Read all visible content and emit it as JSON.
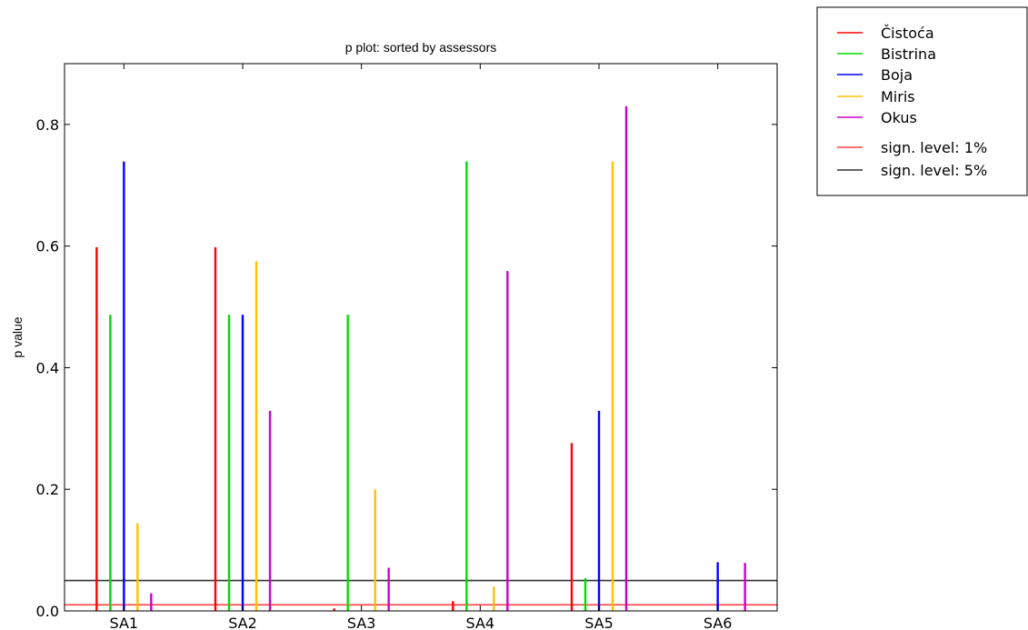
{
  "chart_data": {
    "type": "bar",
    "title": "p plot: sorted by assessors",
    "xlabel": "",
    "ylabel": "p value",
    "categories": [
      "SA1",
      "SA2",
      "SA3",
      "SA4",
      "SA5",
      "SA6"
    ],
    "ylim": [
      0,
      0.9
    ],
    "yticks": [
      0.0,
      0.2,
      0.4,
      0.6,
      0.8
    ],
    "ytick_labels": [
      "0.0",
      "0.2",
      "0.4",
      "0.6",
      "0.8"
    ],
    "grid": false,
    "legend_position": "outside top-right",
    "series": [
      {
        "name": "Čistoća",
        "color": "#ff0000",
        "values": [
          0.598,
          0.598,
          0.004,
          0.016,
          0.276,
          0.0
        ]
      },
      {
        "name": "Bistrina",
        "color": "#00dd00",
        "values": [
          0.487,
          0.487,
          0.487,
          0.739,
          0.054,
          0.0
        ]
      },
      {
        "name": "Boja",
        "color": "#0000ff",
        "values": [
          0.739,
          0.487,
          0.0,
          0.0,
          0.329,
          0.08
        ]
      },
      {
        "name": "Miris",
        "color": "#ffc000",
        "values": [
          0.144,
          0.575,
          0.2,
          0.04,
          0.739,
          0.0
        ]
      },
      {
        "name": "Okus",
        "color": "#cc00cc",
        "values": [
          0.029,
          0.329,
          0.071,
          0.559,
          0.83,
          0.079
        ]
      }
    ],
    "reference_lines": [
      {
        "name": "sign. level: 1%",
        "color": "#ff4040",
        "value": 0.01
      },
      {
        "name": "sign. level: 5%",
        "color": "#333333",
        "value": 0.05
      }
    ]
  }
}
